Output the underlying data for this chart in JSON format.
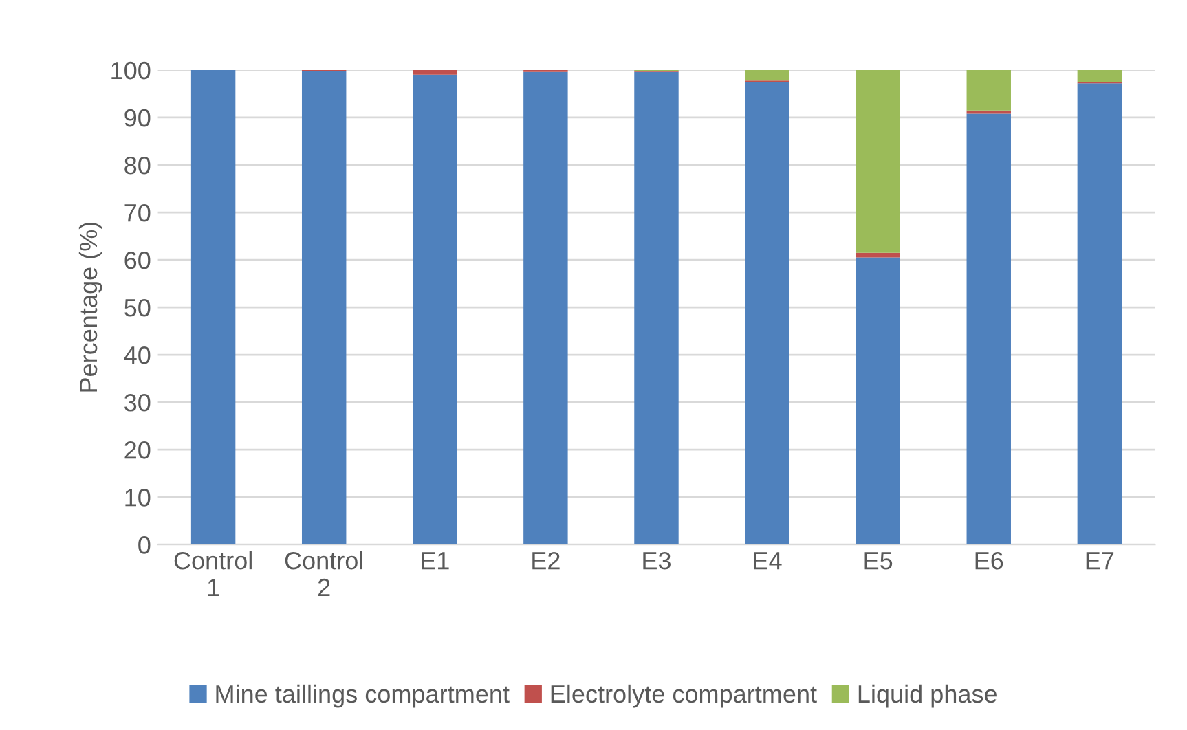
{
  "chart_data": {
    "type": "bar",
    "stacked": true,
    "ylabel": "Percentage (%)",
    "categories": [
      "Control\n1",
      "Control\n2",
      "E1",
      "E2",
      "E3",
      "E4",
      "E5",
      "E6",
      "E7"
    ],
    "series": [
      {
        "name": "Mine taillings compartment",
        "color": "#4f81bd",
        "values": [
          100,
          99.7,
          99.0,
          99.6,
          99.6,
          97.4,
          60.5,
          90.8,
          97.2
        ]
      },
      {
        "name": "Electrolyte compartment",
        "color": "#c0504d",
        "values": [
          0,
          0.3,
          1.0,
          0.4,
          0.2,
          0.4,
          1.0,
          0.7,
          0.3
        ]
      },
      {
        "name": "Liquid phase",
        "color": "#9bbb59",
        "values": [
          0,
          0,
          0,
          0,
          0.2,
          2.2,
          38.5,
          8.5,
          2.5
        ]
      }
    ],
    "ylim": [
      0,
      100
    ],
    "yticks": [
      0,
      10,
      20,
      30,
      40,
      50,
      60,
      70,
      80,
      90,
      100
    ],
    "grid": "y",
    "legend": "bottom"
  }
}
